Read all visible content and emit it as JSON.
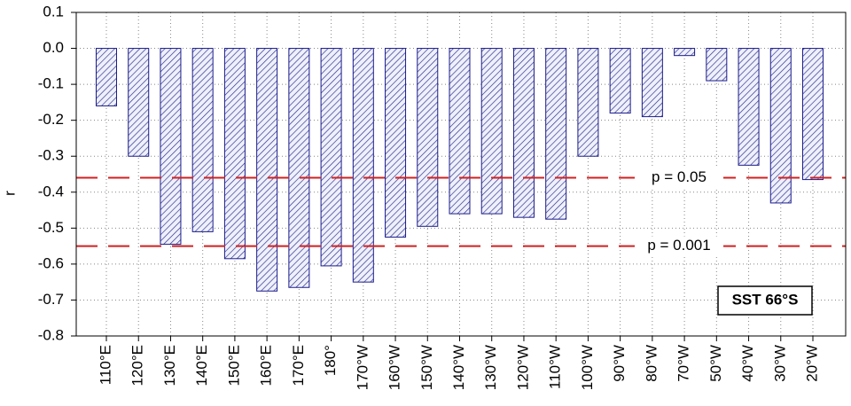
{
  "chart_data": {
    "type": "bar",
    "ylabel": "r",
    "categories": [
      "110°E",
      "120°E",
      "130°E",
      "140°E",
      "150°E",
      "160°E",
      "170°E",
      "180°",
      "170°W",
      "160°W",
      "150°W",
      "140°W",
      "130°W",
      "120°W",
      "110°W",
      "100°W",
      "90°W",
      "80°W",
      "70°W",
      "50°W",
      "40°W",
      "30°W",
      "20°W"
    ],
    "values": [
      -0.16,
      -0.3,
      -0.545,
      -0.51,
      -0.585,
      -0.675,
      -0.665,
      -0.605,
      -0.65,
      -0.525,
      -0.495,
      -0.46,
      -0.46,
      -0.47,
      -0.475,
      -0.3,
      -0.18,
      -0.19,
      -0.02,
      -0.09,
      -0.325,
      -0.43,
      -0.365
    ],
    "color": "#1c1c8c",
    "ylim": [
      -0.8,
      0.1
    ],
    "yticks": [
      0.1,
      {
        "value": 0,
        "label": "0.0"
      },
      -0.1,
      -0.2,
      -0.3,
      -0.4,
      -0.5,
      -0.6,
      -0.7,
      -0.8
    ],
    "grid": true,
    "reference_lines": [
      {
        "value": -0.36,
        "label": "p = 0.05",
        "color": "#d42020"
      },
      {
        "value": -0.55,
        "label": "p = 0.001",
        "color": "#d42020"
      }
    ],
    "annotation": "SST 66°S"
  }
}
